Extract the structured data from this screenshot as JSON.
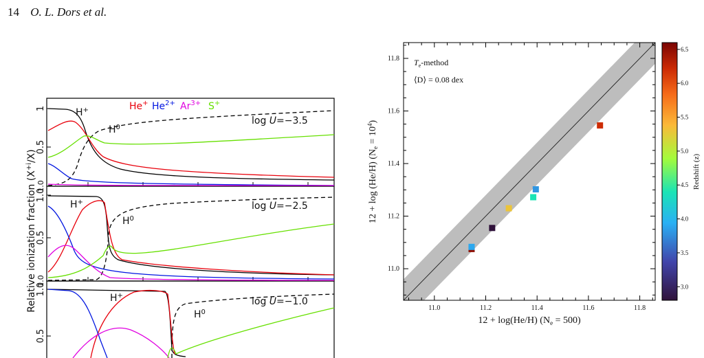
{
  "header": {
    "page_number": "14",
    "authors": "O. L. Dors et al."
  },
  "left_figure": {
    "ylabel": "Relative ionization fraction (X",
    "ylabel_sup": "+i",
    "ylabel_tail": "/X)",
    "ion_legend": [
      {
        "base": "He",
        "sup": "+",
        "color": "#e8000b"
      },
      {
        "base": "He",
        "sup": "2+",
        "color": "#0015e0"
      },
      {
        "base": "Ar",
        "sup": "3+",
        "color": "#e000e0"
      },
      {
        "base": "S",
        "sup": "+",
        "color": "#66e000"
      }
    ],
    "panels": [
      {
        "logU_label": "log ",
        "logU_var": "U",
        "logU_val": "=−3.5",
        "ticks": [
          "1",
          "0.5",
          "1.0"
        ],
        "h_plus": "H",
        "h_plus_sup": "+",
        "h0": "H",
        "h0_sup": "0"
      },
      {
        "logU_label": "log ",
        "logU_var": "U",
        "logU_val": "=−2.5",
        "ticks": [
          "1.0",
          "0.5",
          "1.0"
        ],
        "h_plus": "H",
        "h_plus_sup": "+",
        "h0": "H",
        "h0_sup": "0"
      },
      {
        "logU_label": "log ",
        "logU_var": "U",
        "logU_val": "=−1.0",
        "ticks": [
          "1.0",
          "0.5"
        ],
        "h_plus": "H",
        "h_plus_sup": "+",
        "h0": "H",
        "h0_sup": "0"
      }
    ]
  },
  "chart_data": {
    "type": "scatter",
    "annotation_method": "-method",
    "annotation_method_var": "T",
    "annotation_method_sub": "e",
    "annotation_dispersion": "⟨D⟩ = 0.08 dex",
    "xlabel": "12 + log(He/H) (N",
    "xlabel_sub": "e",
    "xlabel_tail": " = 500)",
    "ylabel": "12 + log (He/H) (N",
    "ylabel_sub": "e",
    "ylabel_tail": " = 10",
    "ylabel_sup": "4",
    "ylabel_close": ")",
    "xlim": [
      10.88,
      11.86
    ],
    "ylim": [
      10.88,
      11.86
    ],
    "x_ticks": [
      "11.0",
      "11.2",
      "11.4",
      "11.6",
      "11.8"
    ],
    "y_ticks": [
      "11.0",
      "11.2",
      "11.4",
      "11.6",
      "11.8"
    ],
    "identity_band_halfwidth_dex": 0.08,
    "colorbar": {
      "label": "Redshift (z)",
      "range": [
        2.8,
        6.6
      ],
      "ticks": [
        "3.0",
        "3.5",
        "4.0",
        "4.5",
        "5.0",
        "5.5",
        "6.0",
        "6.5"
      ]
    },
    "points": [
      {
        "x": 11.145,
        "y": 11.075,
        "z": 6.5
      },
      {
        "x": 11.145,
        "y": 11.083,
        "z": 3.9
      },
      {
        "x": 11.225,
        "y": 11.155,
        "z": 2.8
      },
      {
        "x": 11.29,
        "y": 11.23,
        "z": 5.3
      },
      {
        "x": 11.385,
        "y": 11.272,
        "z": 4.4
      },
      {
        "x": 11.395,
        "y": 11.302,
        "z": 3.8
      },
      {
        "x": 11.645,
        "y": 11.545,
        "z": 6.2
      }
    ]
  }
}
